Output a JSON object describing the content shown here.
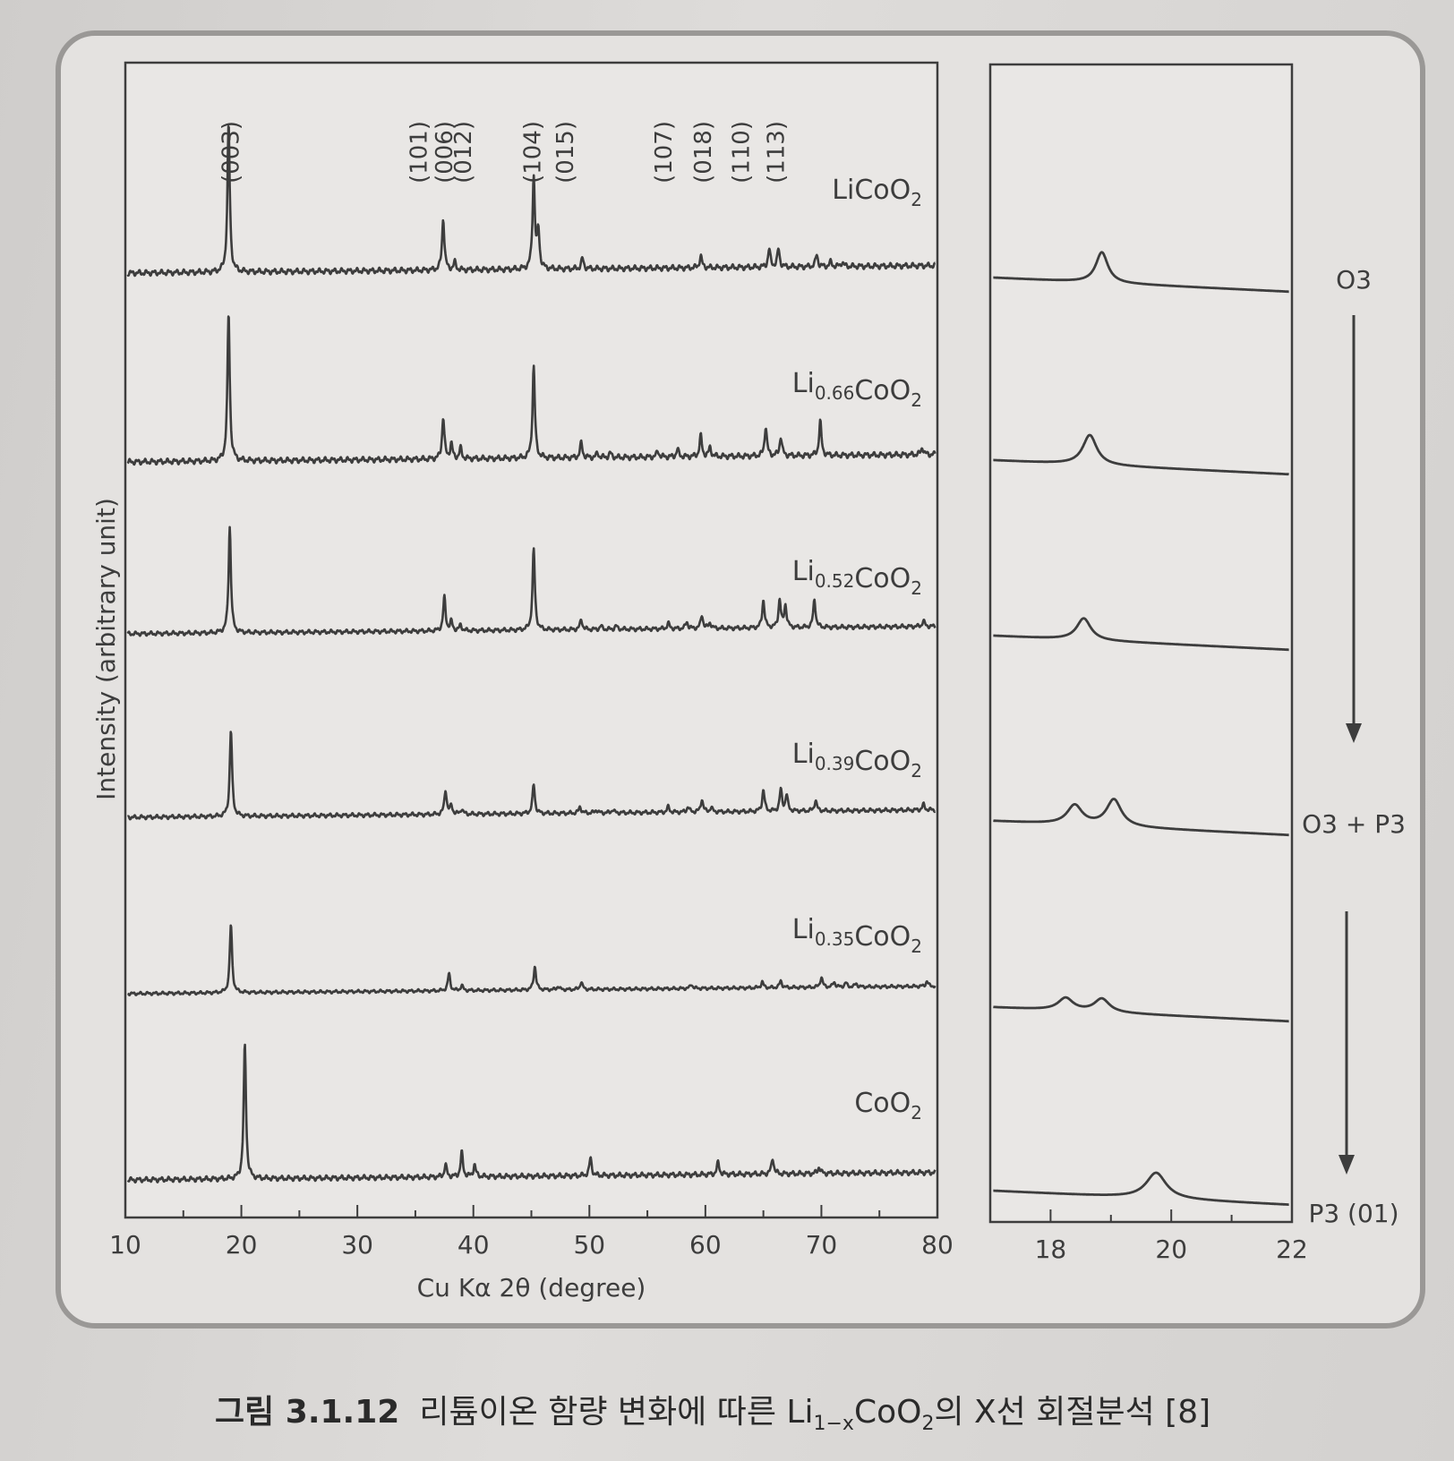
{
  "chart_data": [
    {
      "type": "line",
      "panel": "left",
      "xlabel": "Cu Kα 2θ (degree)",
      "ylabel": "Intensity (arbitrary unit)",
      "xlim": [
        10,
        80
      ],
      "x_ticks": [
        "10",
        "20",
        "30",
        "40",
        "50",
        "60",
        "70",
        "80"
      ],
      "peak_labels": [
        {
          "text": "(003)",
          "x": 19.0
        },
        {
          "text": "(101)",
          "x": 35.2
        },
        {
          "text": "(006)",
          "x": 37.4
        },
        {
          "text": "(012)",
          "x": 39.0
        },
        {
          "text": "(104)",
          "x": 45.0
        },
        {
          "text": "(015)",
          "x": 47.8
        },
        {
          "text": "(107)",
          "x": 56.3
        },
        {
          "text": "(018)",
          "x": 59.7
        },
        {
          "text": "(110)",
          "x": 63.0
        },
        {
          "text": "(113)",
          "x": 66.0
        }
      ],
      "series": [
        {
          "name": "LiCoO",
          "name_sub": "2",
          "peaks": [
            [
              18.9,
              1.0
            ],
            [
              37.4,
              0.35
            ],
            [
              38.4,
              0.05
            ],
            [
              45.2,
              0.62
            ],
            [
              45.6,
              0.25
            ],
            [
              49.4,
              0.07
            ],
            [
              59.6,
              0.08
            ],
            [
              65.5,
              0.12
            ],
            [
              66.3,
              0.12
            ],
            [
              69.6,
              0.08
            ],
            [
              70.8,
              0.03
            ],
            [
              71.8,
              0.03
            ]
          ]
        },
        {
          "name": "Li",
          "name_sub": "0.66",
          "name_tail": "CoO",
          "name_tail_sub": "2",
          "peaks": [
            [
              18.9,
              1.0
            ],
            [
              37.4,
              0.28
            ],
            [
              38.1,
              0.1
            ],
            [
              38.9,
              0.07
            ],
            [
              45.2,
              0.62
            ],
            [
              49.3,
              0.1
            ],
            [
              50.7,
              0.03
            ],
            [
              51.8,
              0.03
            ],
            [
              55.9,
              0.04
            ],
            [
              57.6,
              0.05
            ],
            [
              59.6,
              0.14
            ],
            [
              60.4,
              0.06
            ],
            [
              65.2,
              0.2
            ],
            [
              66.5,
              0.13
            ],
            [
              69.9,
              0.23
            ],
            [
              78.7,
              0.05
            ]
          ]
        },
        {
          "name": "Li",
          "name_sub": "0.52",
          "name_tail": "CoO",
          "name_tail_sub": "2",
          "peaks": [
            [
              19.0,
              0.95
            ],
            [
              37.5,
              0.3
            ],
            [
              38.1,
              0.08
            ],
            [
              38.9,
              0.05
            ],
            [
              45.2,
              0.72
            ],
            [
              49.3,
              0.09
            ],
            [
              51.0,
              0.03
            ],
            [
              52.3,
              0.03
            ],
            [
              56.8,
              0.05
            ],
            [
              58.4,
              0.06
            ],
            [
              59.7,
              0.12
            ],
            [
              60.4,
              0.05
            ],
            [
              65.0,
              0.25
            ],
            [
              66.4,
              0.25
            ],
            [
              66.9,
              0.2
            ],
            [
              69.4,
              0.25
            ],
            [
              78.8,
              0.05
            ]
          ]
        },
        {
          "name": "Li",
          "name_sub": "0.39",
          "name_tail": "CoO",
          "name_tail_sub": "2",
          "peaks": [
            [
              19.1,
              0.8
            ],
            [
              37.6,
              0.23
            ],
            [
              38.1,
              0.08
            ],
            [
              39.0,
              0.05
            ],
            [
              45.2,
              0.27
            ],
            [
              49.2,
              0.06
            ],
            [
              50.6,
              0.03
            ],
            [
              52.0,
              0.03
            ],
            [
              56.8,
              0.05
            ],
            [
              58.5,
              0.05
            ],
            [
              59.7,
              0.12
            ],
            [
              60.5,
              0.04
            ],
            [
              65.0,
              0.2
            ],
            [
              66.5,
              0.2
            ],
            [
              67.0,
              0.15
            ],
            [
              69.5,
              0.1
            ],
            [
              78.8,
              0.05
            ]
          ]
        },
        {
          "name": "Li",
          "name_sub": "0.35",
          "name_tail": "CoO",
          "name_tail_sub": "2",
          "peaks": [
            [
              19.1,
              0.8
            ],
            [
              37.9,
              0.2
            ],
            [
              39.0,
              0.06
            ],
            [
              45.3,
              0.28
            ],
            [
              47.3,
              0.04
            ],
            [
              49.3,
              0.09
            ],
            [
              58.8,
              0.05
            ],
            [
              64.9,
              0.07
            ],
            [
              66.5,
              0.08
            ],
            [
              70.0,
              0.12
            ],
            [
              71.1,
              0.06
            ],
            [
              72.1,
              0.05
            ],
            [
              73.0,
              0.04
            ],
            [
              79.1,
              0.06
            ]
          ]
        },
        {
          "name": "CoO",
          "name_sub": "2",
          "peaks": [
            [
              20.3,
              1.0
            ],
            [
              37.6,
              0.09
            ],
            [
              39.0,
              0.18
            ],
            [
              40.1,
              0.09
            ],
            [
              50.1,
              0.13
            ],
            [
              61.1,
              0.09
            ],
            [
              65.8,
              0.12
            ],
            [
              69.8,
              0.05
            ]
          ]
        }
      ]
    },
    {
      "type": "line",
      "panel": "right",
      "xlim": [
        17,
        22
      ],
      "x_ticks": [
        "18",
        "20",
        "22"
      ],
      "phase_labels": [
        "O3",
        "O3 + P3",
        "P3 (01)"
      ],
      "series": [
        {
          "peaks": [
            [
              18.85,
              0.18
            ]
          ]
        },
        {
          "peaks": [
            [
              18.65,
              0.18
            ]
          ]
        },
        {
          "peaks": [
            [
              18.55,
              0.18
            ]
          ]
        },
        {
          "peaks": [
            [
              18.4,
              0.18
            ],
            [
              19.05,
              0.25
            ]
          ]
        },
        {
          "peaks": [
            [
              18.25,
              0.14
            ],
            [
              18.85,
              0.15
            ]
          ]
        },
        {
          "peaks": [
            [
              19.75,
              0.18
            ]
          ]
        }
      ]
    }
  ],
  "caption": {
    "number": "그림 3.1.12",
    "text_before": "리튬이온 함량 변화에 따른 Li",
    "text_sub": "1−x",
    "text_mid": "CoO",
    "text_sub2": "2",
    "text_after": "의 X선 회절분석 [8]"
  }
}
